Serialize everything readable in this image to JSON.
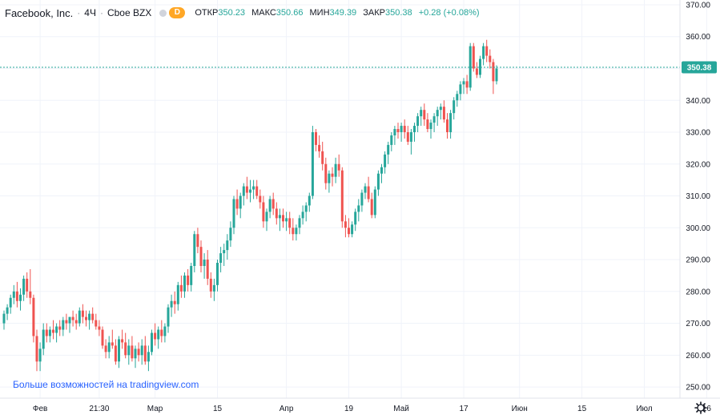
{
  "header": {
    "title": "Facebook, Inc.",
    "interval": "4Ч",
    "exchange": "Cboe BZX",
    "badge": "D",
    "ohlc": [
      {
        "key": "ОТКР",
        "value": "350.23"
      },
      {
        "key": "МАКС",
        "value": "350.66"
      },
      {
        "key": "МИН",
        "value": "349.39"
      },
      {
        "key": "ЗАКР",
        "value": "350.38"
      }
    ],
    "change": "+0.28 (+0.08%)"
  },
  "last_price_label": "350.38",
  "promo_text": "Больше возможностей на tradingview.com",
  "settings_icon": "gear-icon",
  "colors": {
    "up": "#26a69a",
    "down": "#ef5350",
    "grid": "#f0f3fa",
    "price_line": "#26a69a",
    "badge": "#ffa726"
  },
  "chart_data": {
    "type": "candlestick",
    "y_ticks": [
      "250.00",
      "260.00",
      "270.00",
      "280.00",
      "290.00",
      "300.00",
      "310.00",
      "320.00",
      "330.00",
      "340.00",
      "350.00",
      "360.00",
      "370.00"
    ],
    "ylim": [
      247,
      371
    ],
    "x_ticks": [
      {
        "label": "Фев",
        "idx": 11
      },
      {
        "label": "21:30",
        "idx": 29
      },
      {
        "label": "Мар",
        "idx": 46
      },
      {
        "label": "15",
        "idx": 65
      },
      {
        "label": "Апр",
        "idx": 86
      },
      {
        "label": "19",
        "idx": 105
      },
      {
        "label": "Май",
        "idx": 121
      },
      {
        "label": "17",
        "idx": 140
      },
      {
        "label": "Июн",
        "idx": 157
      },
      {
        "label": "15",
        "idx": 176
      },
      {
        "label": "Июл",
        "idx": 195
      },
      {
        "label": "16",
        "idx": 214
      }
    ],
    "last_price": 350.38,
    "candles_ohlc": [
      [
        270,
        274,
        268,
        273
      ],
      [
        273,
        276,
        271,
        275
      ],
      [
        275,
        279,
        273,
        278
      ],
      [
        278,
        282,
        276,
        280
      ],
      [
        280,
        283,
        275,
        277
      ],
      [
        277,
        281,
        274,
        279
      ],
      [
        279,
        285,
        277,
        284
      ],
      [
        284,
        286,
        278,
        280
      ],
      [
        280,
        287,
        276,
        278
      ],
      [
        278,
        279,
        264,
        266
      ],
      [
        266,
        268,
        255,
        258
      ],
      [
        258,
        264,
        255,
        262
      ],
      [
        262,
        270,
        260,
        268
      ],
      [
        268,
        270,
        264,
        266
      ],
      [
        266,
        269,
        264,
        268
      ],
      [
        268,
        271,
        265,
        267
      ],
      [
        267,
        270,
        264,
        269
      ],
      [
        269,
        271,
        266,
        268
      ],
      [
        268,
        272,
        266,
        271
      ],
      [
        271,
        273,
        268,
        270
      ],
      [
        270,
        272,
        267,
        272
      ],
      [
        272,
        274,
        269,
        271
      ],
      [
        271,
        273,
        268,
        270
      ],
      [
        270,
        275,
        269,
        274
      ],
      [
        274,
        276,
        270,
        272
      ],
      [
        272,
        274,
        269,
        271
      ],
      [
        271,
        274,
        268,
        273
      ],
      [
        273,
        275,
        270,
        271
      ],
      [
        271,
        273,
        268,
        269
      ],
      [
        269,
        271,
        266,
        268
      ],
      [
        268,
        269,
        262,
        263
      ],
      [
        263,
        265,
        259,
        261
      ],
      [
        261,
        266,
        259,
        264
      ],
      [
        264,
        268,
        262,
        263
      ],
      [
        263,
        265,
        257,
        258
      ],
      [
        258,
        266,
        256,
        265
      ],
      [
        265,
        268,
        262,
        264
      ],
      [
        264,
        267,
        259,
        260
      ],
      [
        260,
        265,
        257,
        263
      ],
      [
        263,
        266,
        258,
        259
      ],
      [
        259,
        263,
        256,
        262
      ],
      [
        262,
        264,
        258,
        260
      ],
      [
        260,
        265,
        257,
        263
      ],
      [
        263,
        266,
        257,
        258
      ],
      [
        258,
        263,
        255,
        261
      ],
      [
        261,
        268,
        260,
        267
      ],
      [
        267,
        270,
        263,
        265
      ],
      [
        265,
        269,
        262,
        268
      ],
      [
        268,
        271,
        264,
        266
      ],
      [
        266,
        270,
        264,
        269
      ],
      [
        269,
        276,
        267,
        275
      ],
      [
        275,
        279,
        272,
        277
      ],
      [
        277,
        280,
        273,
        276
      ],
      [
        276,
        283,
        274,
        282
      ],
      [
        282,
        285,
        278,
        280
      ],
      [
        280,
        286,
        278,
        285
      ],
      [
        285,
        287,
        280,
        282
      ],
      [
        282,
        289,
        280,
        288
      ],
      [
        288,
        299,
        286,
        298
      ],
      [
        298,
        300,
        292,
        294
      ],
      [
        294,
        296,
        286,
        288
      ],
      [
        288,
        292,
        284,
        290
      ],
      [
        290,
        293,
        282,
        284
      ],
      [
        284,
        286,
        278,
        280
      ],
      [
        280,
        284,
        277,
        282
      ],
      [
        282,
        290,
        280,
        289
      ],
      [
        289,
        294,
        286,
        292
      ],
      [
        292,
        295,
        288,
        293
      ],
      [
        293,
        298,
        290,
        296
      ],
      [
        296,
        302,
        294,
        300
      ],
      [
        300,
        310,
        298,
        309
      ],
      [
        309,
        312,
        304,
        306
      ],
      [
        306,
        311,
        303,
        310
      ],
      [
        310,
        314,
        307,
        313
      ],
      [
        313,
        316,
        309,
        311
      ],
      [
        311,
        315,
        308,
        312
      ],
      [
        312,
        315,
        309,
        313
      ],
      [
        313,
        315,
        309,
        310
      ],
      [
        310,
        312,
        306,
        308
      ],
      [
        308,
        310,
        300,
        302
      ],
      [
        302,
        306,
        299,
        305
      ],
      [
        305,
        310,
        303,
        309
      ],
      [
        309,
        311,
        304,
        306
      ],
      [
        306,
        308,
        301,
        303
      ],
      [
        303,
        306,
        299,
        304
      ],
      [
        304,
        306,
        300,
        302
      ],
      [
        302,
        305,
        299,
        303
      ],
      [
        303,
        305,
        298,
        300
      ],
      [
        300,
        303,
        296,
        298
      ],
      [
        298,
        301,
        296,
        300
      ],
      [
        300,
        304,
        298,
        303
      ],
      [
        303,
        307,
        301,
        305
      ],
      [
        305,
        308,
        302,
        307
      ],
      [
        307,
        311,
        305,
        310
      ],
      [
        310,
        332,
        309,
        330
      ],
      [
        330,
        331,
        324,
        326
      ],
      [
        326,
        329,
        322,
        324
      ],
      [
        324,
        327,
        318,
        320
      ],
      [
        320,
        322,
        312,
        314
      ],
      [
        314,
        318,
        311,
        317
      ],
      [
        317,
        319,
        313,
        316
      ],
      [
        316,
        322,
        314,
        320
      ],
      [
        320,
        323,
        316,
        318
      ],
      [
        318,
        319,
        300,
        302
      ],
      [
        302,
        304,
        297,
        300
      ],
      [
        300,
        303,
        297,
        298
      ],
      [
        298,
        302,
        297,
        301
      ],
      [
        301,
        306,
        299,
        305
      ],
      [
        305,
        309,
        302,
        307
      ],
      [
        307,
        312,
        305,
        311
      ],
      [
        311,
        314,
        309,
        313
      ],
      [
        313,
        316,
        308,
        309
      ],
      [
        309,
        311,
        303,
        304
      ],
      [
        304,
        313,
        303,
        312
      ],
      [
        312,
        318,
        310,
        317
      ],
      [
        317,
        320,
        314,
        319
      ],
      [
        319,
        324,
        317,
        323
      ],
      [
        323,
        327,
        320,
        326
      ],
      [
        326,
        330,
        324,
        329
      ],
      [
        329,
        332,
        326,
        331
      ],
      [
        331,
        333,
        328,
        330
      ],
      [
        330,
        333,
        327,
        332
      ],
      [
        332,
        334,
        328,
        330
      ],
      [
        330,
        332,
        326,
        327
      ],
      [
        327,
        331,
        323,
        330
      ],
      [
        330,
        333,
        327,
        332
      ],
      [
        332,
        336,
        330,
        335
      ],
      [
        335,
        338,
        332,
        337
      ],
      [
        337,
        339,
        332,
        334
      ],
      [
        334,
        336,
        330,
        331
      ],
      [
        331,
        334,
        328,
        333
      ],
      [
        333,
        336,
        330,
        335
      ],
      [
        335,
        338,
        332,
        337
      ],
      [
        337,
        339,
        334,
        338
      ],
      [
        338,
        340,
        333,
        334
      ],
      [
        334,
        336,
        328,
        330
      ],
      [
        330,
        337,
        328,
        336
      ],
      [
        336,
        341,
        334,
        340
      ],
      [
        340,
        343,
        338,
        342
      ],
      [
        342,
        346,
        340,
        345
      ],
      [
        345,
        347,
        342,
        346
      ],
      [
        346,
        348,
        342,
        344
      ],
      [
        344,
        358,
        343,
        357
      ],
      [
        357,
        358,
        349,
        350
      ],
      [
        350,
        352,
        347,
        348
      ],
      [
        348,
        354,
        347,
        353
      ],
      [
        353,
        358,
        351,
        357
      ],
      [
        357,
        359,
        352,
        354
      ],
      [
        354,
        356,
        350,
        352
      ],
      [
        352,
        353,
        342,
        346
      ],
      [
        346,
        351,
        345,
        350
      ]
    ]
  }
}
